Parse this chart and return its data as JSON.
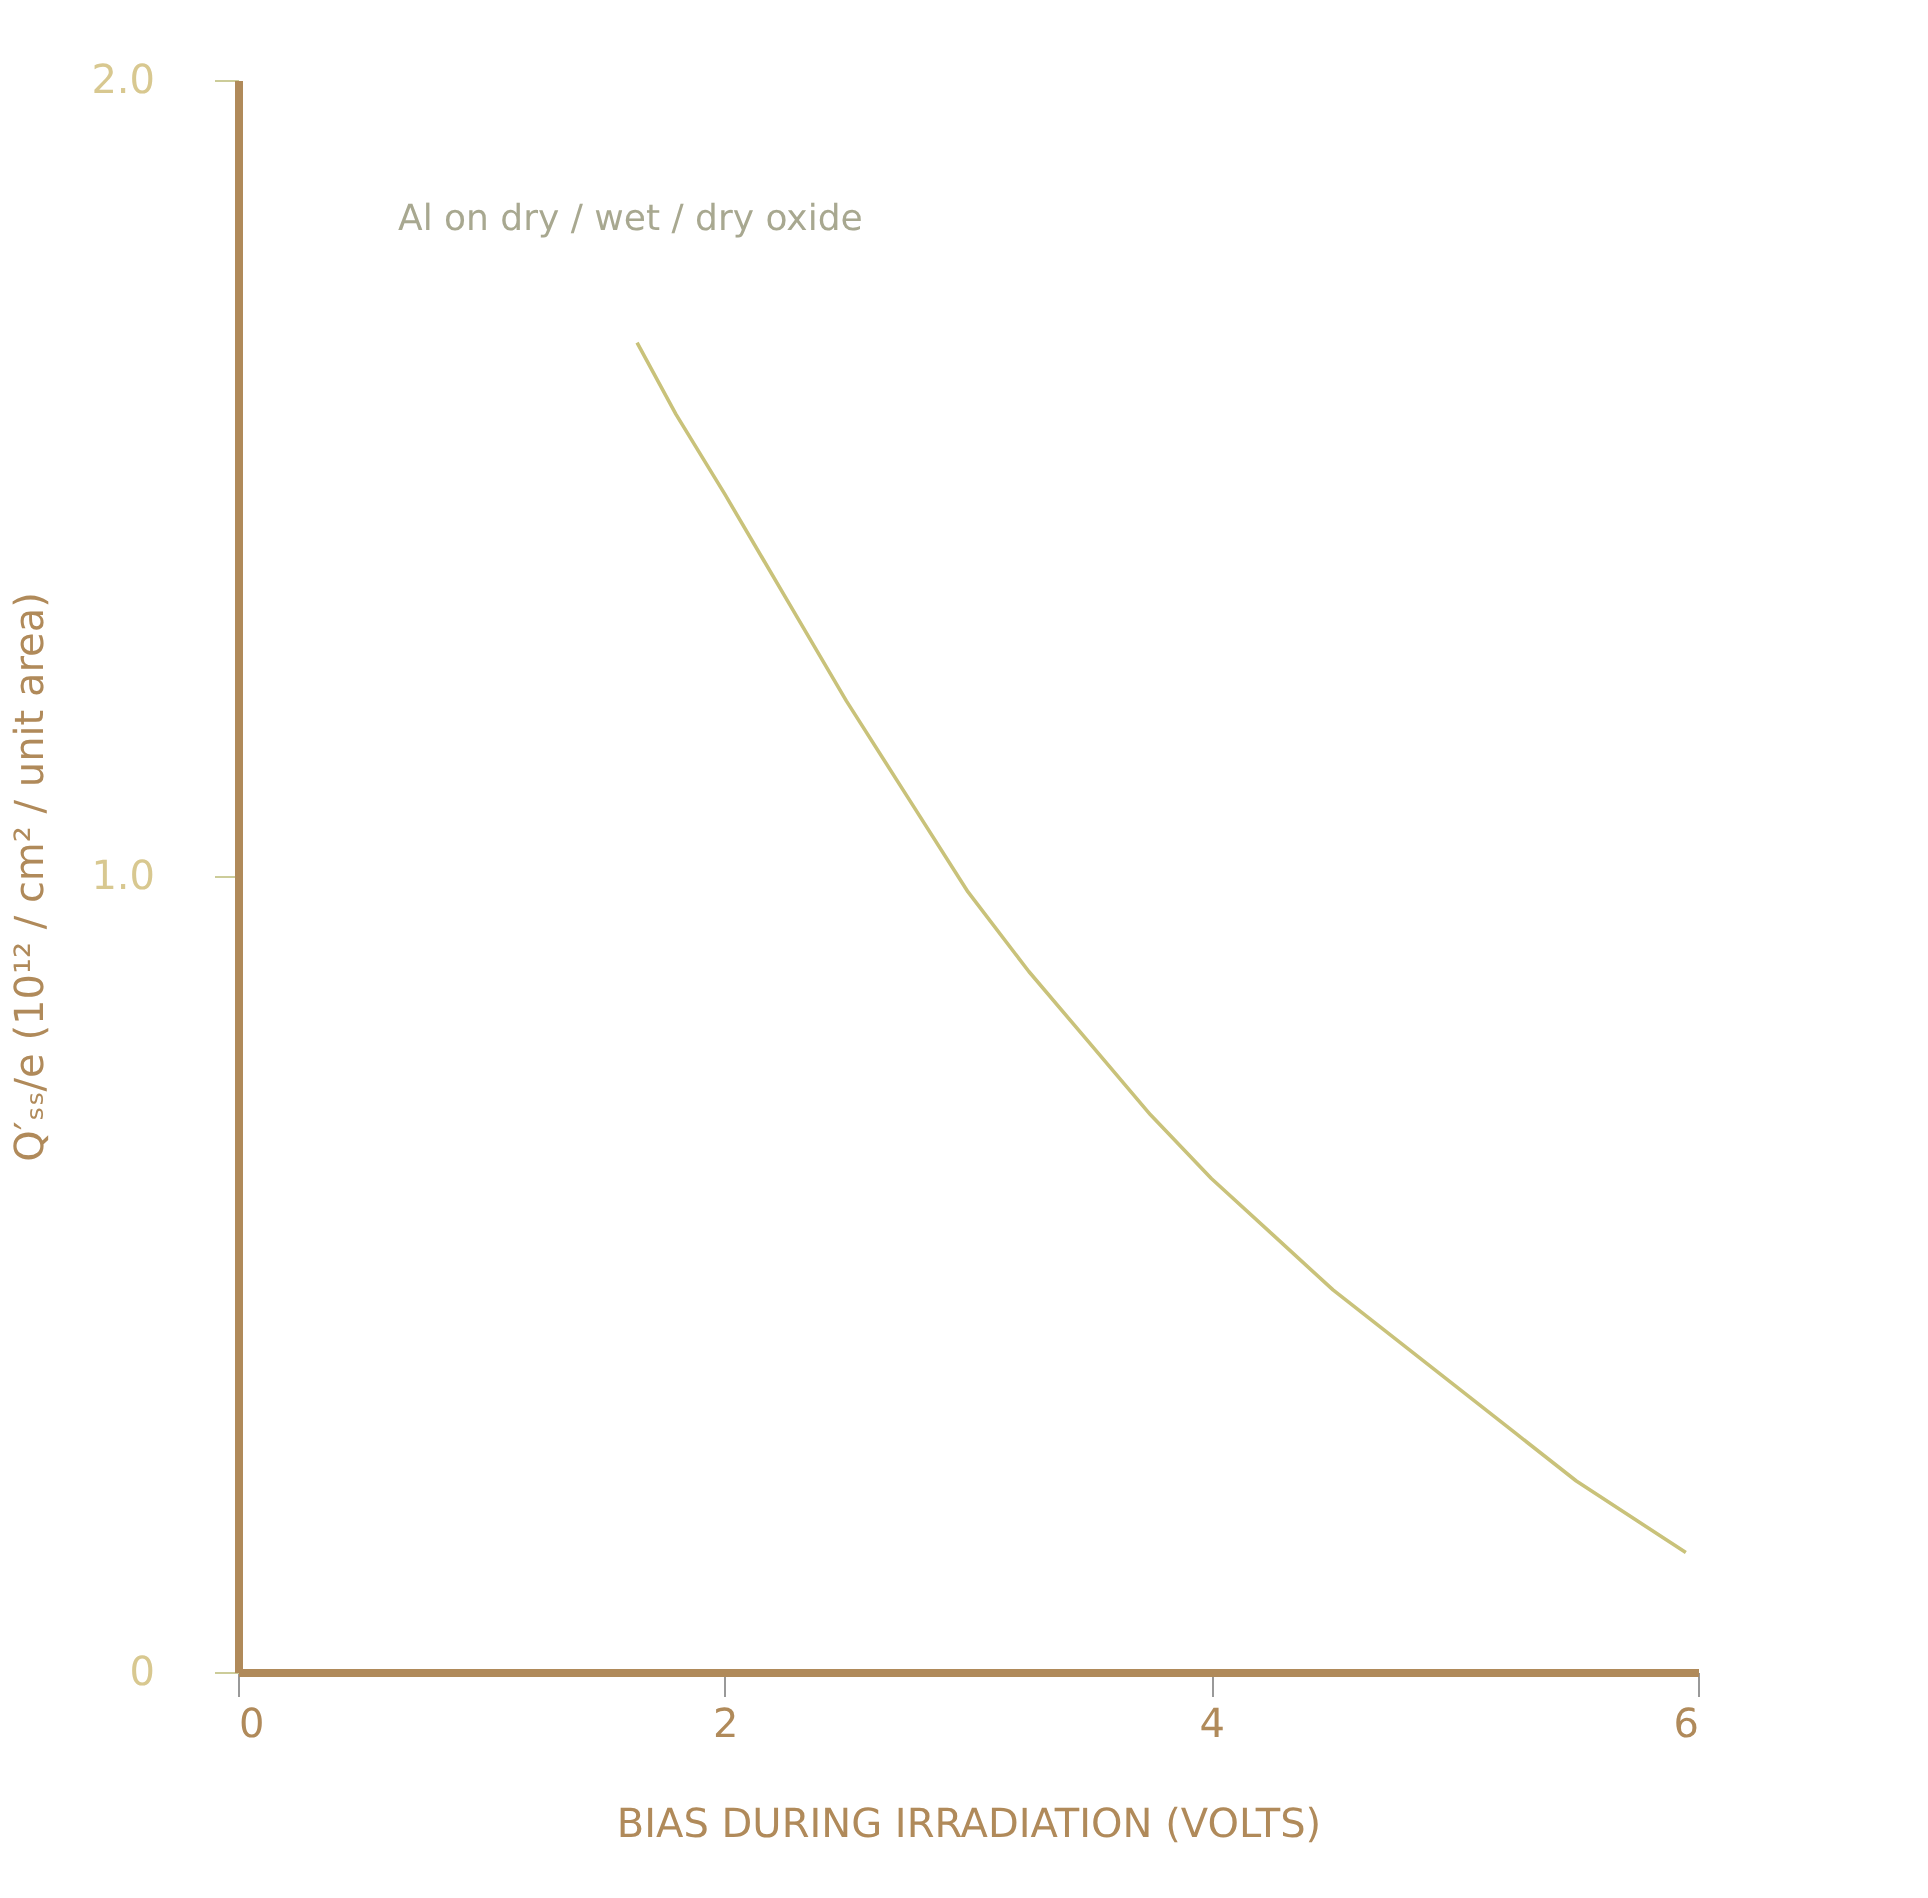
{
  "chart_data": {
    "type": "line",
    "title": "Al on dry / wet / dry oxide",
    "xlabel": "BIAS DURING IRRADIATION (VOLTS)",
    "ylabel": "Q′ₛₛ/e (10¹² / cm² / unit area)",
    "series": [
      {
        "color": "#c9c27a",
        "x": [
          1.64,
          1.8,
          2.0,
          2.25,
          2.5,
          2.75,
          3.0,
          3.25,
          3.5,
          3.75,
          4.0,
          4.25,
          4.5,
          4.75,
          5.0,
          5.25,
          5.5,
          5.75,
          5.95
        ],
        "values": [
          1.67,
          1.58,
          1.48,
          1.35,
          1.22,
          1.1,
          0.98,
          0.88,
          0.79,
          0.7,
          0.62,
          0.55,
          0.48,
          0.42,
          0.36,
          0.3,
          0.24,
          0.19,
          0.15
        ]
      }
    ],
    "xlim": [
      0,
      6
    ],
    "xticks": [
      0,
      2,
      4,
      6
    ],
    "ylim": [
      0,
      2
    ],
    "yticks": [
      0,
      {
        "value": 1,
        "label": "1.0"
      },
      {
        "value": 2,
        "label": "2.0"
      }
    ],
    "grid": false,
    "marker": "none",
    "line_style": "solid"
  }
}
